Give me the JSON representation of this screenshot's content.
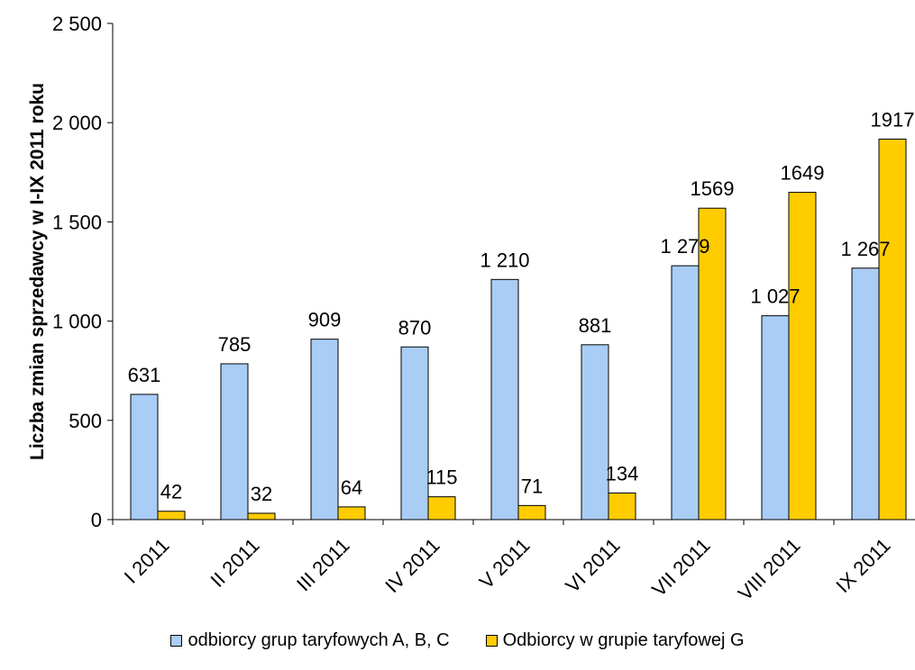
{
  "chart_data": {
    "type": "bar",
    "categories": [
      "I 2011",
      "II 2011",
      "III 2011",
      "IV 2011",
      "V 2011",
      "VI 2011",
      "VII 2011",
      "VIII 2011",
      "IX 2011"
    ],
    "series": [
      {
        "name": "odbiorcy grup taryfowych A, B, C",
        "color": "#a9cdf5",
        "values": [
          631,
          785,
          909,
          870,
          1210,
          881,
          1279,
          1027,
          1267
        ],
        "labels": [
          "631",
          "785",
          "909",
          "870",
          "1 210",
          "881",
          "1 279",
          "1 027",
          "1 267"
        ]
      },
      {
        "name": "Odbiorcy w grupie taryfowej G",
        "color": "#ffcc00",
        "values": [
          42,
          32,
          64,
          115,
          71,
          134,
          1569,
          1649,
          1917
        ],
        "labels": [
          "42",
          "32",
          "64",
          "115",
          "71",
          "134",
          "1569",
          "1649",
          "1917"
        ]
      }
    ],
    "title": "",
    "xlabel": "",
    "ylabel": "Liczba zmian sprzedawcy w I-IX 2011 roku",
    "ylim": [
      0,
      2500
    ],
    "yticks": [
      0,
      500,
      1000,
      1500,
      2000,
      2500
    ],
    "ytick_labels": [
      "0",
      "500",
      "1 000",
      "1 500",
      "2 000",
      "2 500"
    ],
    "grid": false,
    "legend_position": "bottom"
  }
}
